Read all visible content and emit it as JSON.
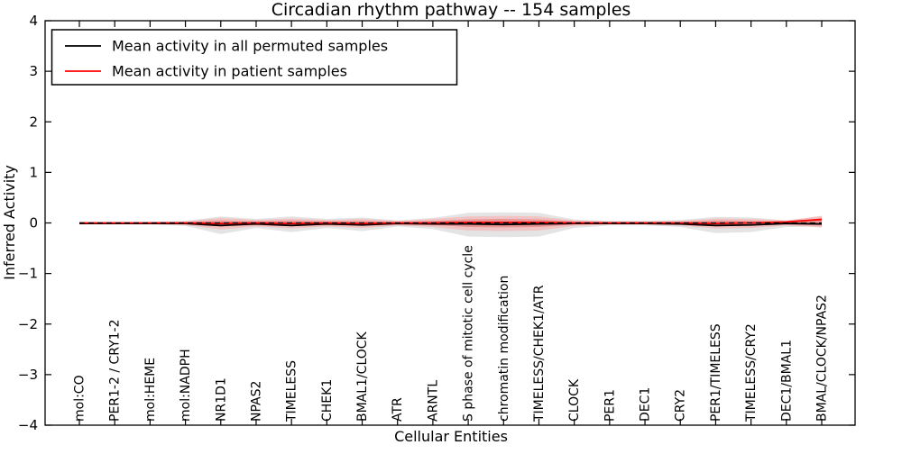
{
  "figure": {
    "title": "Circadian rhythm pathway -- 154 samples",
    "xlabel": "Cellular Entities",
    "ylabel": "Inferred Activity"
  },
  "legend": {
    "position": "upper left",
    "entries": [
      {
        "label": "Mean activity in all permuted samples",
        "color": "#000000"
      },
      {
        "label": "Mean activity in patient samples",
        "color": "#ff0000"
      }
    ]
  },
  "chart_data": {
    "type": "line",
    "title": "Circadian rhythm pathway -- 154 samples",
    "xlabel": "Cellular Entities",
    "ylabel": "Inferred Activity",
    "ylim": [
      -4,
      4
    ],
    "yticks": [
      4,
      3,
      2,
      1,
      0,
      -1,
      -2,
      -3,
      -4
    ],
    "ytick_labels": [
      "4",
      "3",
      "2",
      "1",
      "0",
      "−1",
      "−2",
      "−3",
      "−4"
    ],
    "grid": false,
    "legend_position": "upper left",
    "categories": [
      "mol:CO",
      "PER1-2 / CRY1-2",
      "mol:HEME",
      "mol:NADPH",
      "NR1D1",
      "NPAS2",
      "TIMELESS",
      "CHEK1",
      "BMAL1/CLOCK",
      "ATR",
      "ARNTL",
      "S phase of mitotic cell cycle",
      "chromatin modification",
      "TIMELESS/CHEK1/ATR",
      "CLOCK",
      "PER1",
      "DEC1",
      "CRY2",
      "PER1/TIMELESS",
      "TIMELESS/CRY2",
      "DEC1/BMAL1",
      "BMAL/CLOCK/NPAS2"
    ],
    "series": [
      {
        "name": "Mean activity in all permuted samples",
        "slug": "permuted-mean",
        "color": "#000000",
        "style": "solid",
        "values": [
          -0.01,
          -0.01,
          -0.01,
          -0.01,
          -0.05,
          -0.02,
          -0.05,
          -0.02,
          -0.04,
          -0.01,
          -0.02,
          -0.02,
          -0.03,
          -0.02,
          -0.01,
          -0.01,
          -0.01,
          -0.02,
          -0.05,
          -0.04,
          -0.01,
          -0.02
        ]
      },
      {
        "name": "Mean activity in patient samples",
        "slug": "patient-mean",
        "color": "#ff0000",
        "style": "solid",
        "values": [
          0,
          0,
          0,
          0,
          -0.01,
          0,
          -0.01,
          0,
          -0.01,
          0,
          0,
          0.01,
          0.01,
          0.01,
          0,
          0,
          0,
          0,
          -0.01,
          0,
          0.02,
          0.07
        ]
      }
    ],
    "bands": [
      {
        "name": "permuted-outer",
        "color": "#e4e4e4",
        "upper": [
          0.02,
          0.02,
          0.02,
          0.04,
          0.13,
          0.08,
          0.13,
          0.08,
          0.11,
          0.05,
          0.1,
          0.2,
          0.21,
          0.2,
          0.07,
          0.04,
          0.04,
          0.06,
          0.12,
          0.11,
          0.05,
          0.06
        ],
        "lower": [
          -0.03,
          -0.03,
          -0.03,
          -0.06,
          -0.22,
          -0.1,
          -0.18,
          -0.1,
          -0.16,
          -0.07,
          -0.12,
          -0.27,
          -0.28,
          -0.27,
          -0.1,
          -0.05,
          -0.05,
          -0.08,
          -0.2,
          -0.18,
          -0.08,
          -0.07
        ]
      },
      {
        "name": "permuted-inner",
        "color": "#d5d5d5",
        "upper": [
          0.01,
          0.01,
          0.01,
          0.02,
          0.07,
          0.04,
          0.07,
          0.04,
          0.06,
          0.03,
          0.05,
          0.1,
          0.11,
          0.1,
          0.04,
          0.02,
          0.02,
          0.03,
          0.06,
          0.06,
          0.03,
          0.03
        ],
        "lower": [
          -0.02,
          -0.02,
          -0.02,
          -0.03,
          -0.12,
          -0.05,
          -0.1,
          -0.05,
          -0.09,
          -0.04,
          -0.06,
          -0.14,
          -0.15,
          -0.14,
          -0.05,
          -0.03,
          -0.03,
          -0.04,
          -0.11,
          -0.1,
          -0.04,
          -0.04
        ]
      },
      {
        "name": "patient-outer",
        "color": "#f2c3c3",
        "upper": [
          0.015,
          0.015,
          0.015,
          0.03,
          0.1,
          0.06,
          0.09,
          0.06,
          0.08,
          0.04,
          0.08,
          0.13,
          0.14,
          0.13,
          0.05,
          0.03,
          0.03,
          0.04,
          0.09,
          0.08,
          0.05,
          0.14
        ],
        "lower": [
          -0.02,
          -0.02,
          -0.02,
          -0.04,
          -0.13,
          -0.07,
          -0.11,
          -0.07,
          -0.1,
          -0.05,
          -0.08,
          -0.15,
          -0.16,
          -0.15,
          -0.06,
          -0.03,
          -0.03,
          -0.05,
          -0.11,
          -0.1,
          -0.05,
          -0.09
        ]
      },
      {
        "name": "patient-inner",
        "color": "#ea9494",
        "upper": [
          0.01,
          0.01,
          0.01,
          0.015,
          0.05,
          0.03,
          0.05,
          0.03,
          0.04,
          0.02,
          0.04,
          0.07,
          0.08,
          0.07,
          0.03,
          0.02,
          0.02,
          0.02,
          0.05,
          0.04,
          0.03,
          0.09
        ],
        "lower": [
          -0.01,
          -0.01,
          -0.01,
          -0.02,
          -0.07,
          -0.04,
          -0.06,
          -0.04,
          -0.05,
          -0.03,
          -0.04,
          -0.08,
          -0.09,
          -0.08,
          -0.03,
          -0.02,
          -0.02,
          -0.03,
          -0.06,
          -0.05,
          -0.03,
          -0.05
        ]
      }
    ],
    "zero_line": {
      "value": 0,
      "color": "#000000",
      "style": "dashed"
    }
  }
}
